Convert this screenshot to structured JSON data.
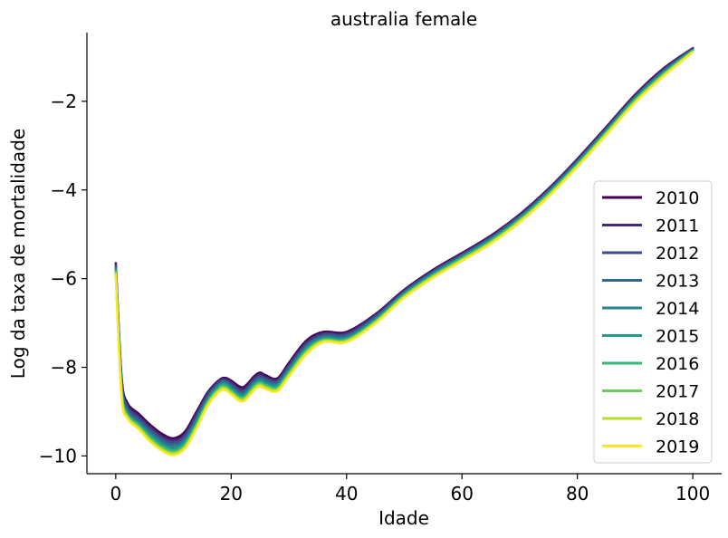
{
  "chart_data": {
    "type": "line",
    "title": "australia female",
    "xlabel": "Idade",
    "ylabel": "Log da taxa de mortalidade",
    "xlim": [
      -5,
      105
    ],
    "ylim": [
      -10.4,
      -0.45
    ],
    "xticks": [
      0,
      20,
      40,
      60,
      80,
      100
    ],
    "xtick_labels": [
      "0",
      "20",
      "40",
      "60",
      "80",
      "100"
    ],
    "yticks": [
      -10,
      -8,
      -6,
      -4,
      -2
    ],
    "ytick_labels": [
      "−10",
      "−8",
      "−6",
      "−4",
      "−2"
    ],
    "grid": false,
    "legend_position": "lower right",
    "x": [
      0,
      1,
      2,
      4,
      6,
      8,
      10,
      12,
      14,
      16,
      18,
      19,
      20,
      22,
      24,
      25,
      26,
      28,
      30,
      33,
      36,
      40,
      45,
      50,
      55,
      60,
      65,
      70,
      75,
      80,
      85,
      90,
      95,
      100
    ],
    "series": [
      {
        "name": "2010",
        "color": "#440154",
        "values": [
          -5.65,
          -8.2,
          -8.8,
          -9.05,
          -9.3,
          -9.5,
          -9.6,
          -9.45,
          -9.0,
          -8.55,
          -8.28,
          -8.24,
          -8.3,
          -8.45,
          -8.2,
          -8.12,
          -8.18,
          -8.25,
          -7.9,
          -7.4,
          -7.2,
          -7.2,
          -6.8,
          -6.25,
          -5.8,
          -5.42,
          -5.03,
          -4.55,
          -3.97,
          -3.3,
          -2.58,
          -1.85,
          -1.25,
          -0.8
        ]
      },
      {
        "name": "2011",
        "color": "#482878",
        "values": [
          -5.68,
          -8.25,
          -8.85,
          -9.1,
          -9.35,
          -9.55,
          -9.65,
          -9.5,
          -9.05,
          -8.58,
          -8.3,
          -8.27,
          -8.34,
          -8.5,
          -8.24,
          -8.16,
          -8.22,
          -8.28,
          -7.94,
          -7.44,
          -7.23,
          -7.23,
          -6.82,
          -6.27,
          -5.82,
          -5.44,
          -5.05,
          -4.57,
          -3.99,
          -3.32,
          -2.6,
          -1.87,
          -1.27,
          -0.81
        ]
      },
      {
        "name": "2012",
        "color": "#3E4A89",
        "values": [
          -5.71,
          -8.3,
          -8.9,
          -9.15,
          -9.4,
          -9.6,
          -9.7,
          -9.55,
          -9.1,
          -8.62,
          -8.33,
          -8.3,
          -8.38,
          -8.54,
          -8.28,
          -8.2,
          -8.26,
          -8.31,
          -7.98,
          -7.48,
          -7.26,
          -7.26,
          -6.85,
          -6.29,
          -5.84,
          -5.46,
          -5.07,
          -4.59,
          -4.01,
          -3.34,
          -2.62,
          -1.89,
          -1.29,
          -0.82
        ]
      },
      {
        "name": "2013",
        "color": "#31688E",
        "values": [
          -5.74,
          -8.35,
          -8.95,
          -9.2,
          -9.45,
          -9.65,
          -9.75,
          -9.6,
          -9.15,
          -8.66,
          -8.36,
          -8.33,
          -8.42,
          -8.58,
          -8.32,
          -8.24,
          -8.3,
          -8.35,
          -8.02,
          -7.52,
          -7.29,
          -7.29,
          -6.88,
          -6.31,
          -5.86,
          -5.48,
          -5.09,
          -4.61,
          -4.03,
          -3.36,
          -2.64,
          -1.91,
          -1.31,
          -0.83
        ]
      },
      {
        "name": "2014",
        "color": "#26828E",
        "values": [
          -5.77,
          -8.4,
          -9.0,
          -9.25,
          -9.5,
          -9.7,
          -9.8,
          -9.65,
          -9.2,
          -8.7,
          -8.39,
          -8.36,
          -8.46,
          -8.62,
          -8.36,
          -8.28,
          -8.34,
          -8.39,
          -8.06,
          -7.56,
          -7.32,
          -7.32,
          -6.91,
          -6.33,
          -5.88,
          -5.5,
          -5.11,
          -4.63,
          -4.05,
          -3.38,
          -2.66,
          -1.93,
          -1.33,
          -0.84
        ]
      },
      {
        "name": "2015",
        "color": "#1F9E89",
        "values": [
          -5.8,
          -8.45,
          -9.03,
          -9.28,
          -9.54,
          -9.74,
          -9.84,
          -9.69,
          -9.24,
          -8.73,
          -8.42,
          -8.39,
          -8.49,
          -8.65,
          -8.39,
          -8.31,
          -8.37,
          -8.42,
          -8.09,
          -7.59,
          -7.35,
          -7.35,
          -6.93,
          -6.35,
          -5.9,
          -5.52,
          -5.13,
          -4.65,
          -4.07,
          -3.4,
          -2.68,
          -1.95,
          -1.35,
          -0.85
        ]
      },
      {
        "name": "2016",
        "color": "#35B779",
        "values": [
          -5.83,
          -8.5,
          -9.06,
          -9.31,
          -9.58,
          -9.78,
          -9.88,
          -9.73,
          -9.28,
          -8.76,
          -8.45,
          -8.42,
          -8.52,
          -8.68,
          -8.42,
          -8.34,
          -8.4,
          -8.45,
          -8.12,
          -7.62,
          -7.37,
          -7.37,
          -6.95,
          -6.37,
          -5.92,
          -5.54,
          -5.15,
          -4.67,
          -4.09,
          -3.42,
          -2.7,
          -1.97,
          -1.37,
          -0.86
        ]
      },
      {
        "name": "2017",
        "color": "#6DCD59",
        "values": [
          -5.86,
          -8.55,
          -9.09,
          -9.34,
          -9.62,
          -9.82,
          -9.92,
          -9.77,
          -9.32,
          -8.79,
          -8.48,
          -8.45,
          -8.55,
          -8.71,
          -8.45,
          -8.37,
          -8.43,
          -8.48,
          -8.15,
          -7.65,
          -7.39,
          -7.39,
          -6.97,
          -6.39,
          -5.94,
          -5.56,
          -5.17,
          -4.69,
          -4.11,
          -3.44,
          -2.72,
          -1.99,
          -1.39,
          -0.87
        ]
      },
      {
        "name": "2018",
        "color": "#B4DE2C",
        "values": [
          -5.89,
          -8.6,
          -9.12,
          -9.37,
          -9.65,
          -9.85,
          -9.95,
          -9.8,
          -9.35,
          -8.82,
          -8.51,
          -8.48,
          -8.58,
          -8.74,
          -8.48,
          -8.4,
          -8.46,
          -8.51,
          -8.18,
          -7.68,
          -7.41,
          -7.41,
          -6.99,
          -6.41,
          -5.96,
          -5.58,
          -5.19,
          -4.71,
          -4.13,
          -3.46,
          -2.74,
          -2.01,
          -1.41,
          -0.88
        ]
      },
      {
        "name": "2019",
        "color": "#FDE725",
        "values": [
          -5.92,
          -8.65,
          -9.15,
          -9.4,
          -9.68,
          -9.88,
          -9.98,
          -9.83,
          -9.38,
          -8.85,
          -8.54,
          -8.51,
          -8.61,
          -8.77,
          -8.51,
          -8.43,
          -8.49,
          -8.54,
          -8.21,
          -7.71,
          -7.43,
          -7.43,
          -7.01,
          -6.43,
          -5.98,
          -5.6,
          -5.21,
          -4.73,
          -4.15,
          -3.48,
          -2.76,
          -2.03,
          -1.43,
          -0.89
        ]
      }
    ]
  }
}
